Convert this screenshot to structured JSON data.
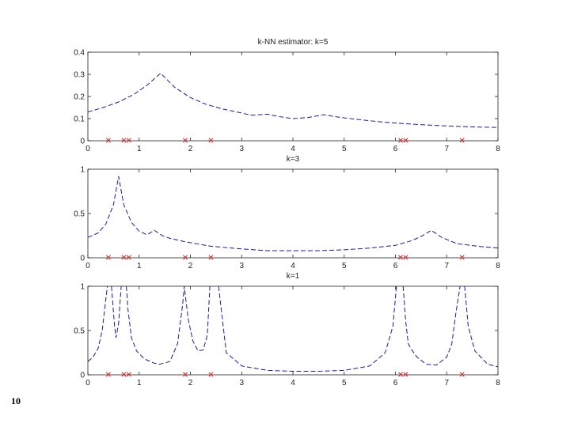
{
  "slide": {
    "page_number": "10"
  },
  "colors": {
    "curve": "#1a1aa8",
    "sample": "#d32020",
    "axis": "#222222"
  },
  "chart_data": [
    {
      "type": "line",
      "title": "k-NN estimator: k=5",
      "xlim": [
        0,
        8
      ],
      "ylim": [
        0,
        0.4
      ],
      "xticks": [
        0,
        1,
        2,
        3,
        4,
        5,
        6,
        7,
        8
      ],
      "yticks": [
        0,
        0.1,
        0.2,
        0.3,
        0.4
      ],
      "ytick_labels": [
        "0",
        "0.1",
        "0.2",
        "0.3",
        "0.4"
      ],
      "line_style": "dashed",
      "series": [
        {
          "x": [
            0,
            0.3,
            0.6,
            0.9,
            1.15,
            1.42,
            1.7,
            2.0,
            2.3,
            2.6,
            3.0,
            3.2,
            3.5,
            3.7,
            4.0,
            4.3,
            4.6,
            4.85,
            5.2,
            5.6,
            6.0,
            6.4,
            6.8,
            7.2,
            7.6,
            8.0
          ],
          "y": [
            0.13,
            0.15,
            0.175,
            0.21,
            0.25,
            0.305,
            0.24,
            0.195,
            0.165,
            0.145,
            0.125,
            0.115,
            0.12,
            0.11,
            0.1,
            0.105,
            0.118,
            0.108,
            0.098,
            0.088,
            0.08,
            0.074,
            0.069,
            0.065,
            0.062,
            0.06
          ]
        }
      ],
      "samples": [
        0.4,
        0.7,
        0.8,
        1.9,
        2.4,
        6.1,
        6.2,
        7.3
      ]
    },
    {
      "type": "line",
      "title": "k=3",
      "xlim": [
        0,
        8
      ],
      "ylim": [
        0,
        1
      ],
      "xticks": [
        0,
        1,
        2,
        3,
        4,
        5,
        6,
        7,
        8
      ],
      "yticks": [
        0,
        0.5,
        1
      ],
      "ytick_labels": [
        "0",
        "0.5",
        "1"
      ],
      "line_style": "dashed",
      "series": [
        {
          "x": [
            0,
            0.2,
            0.35,
            0.5,
            0.6,
            0.7,
            0.85,
            1.0,
            1.15,
            1.3,
            1.45,
            1.6,
            1.9,
            2.4,
            3.0,
            3.5,
            4.0,
            4.5,
            5.0,
            5.5,
            6.0,
            6.3,
            6.5,
            6.7,
            6.9,
            7.2,
            7.6,
            8.0
          ],
          "y": [
            0.23,
            0.28,
            0.38,
            0.6,
            0.92,
            0.6,
            0.4,
            0.3,
            0.26,
            0.31,
            0.25,
            0.22,
            0.18,
            0.13,
            0.1,
            0.08,
            0.08,
            0.08,
            0.09,
            0.11,
            0.14,
            0.19,
            0.24,
            0.31,
            0.23,
            0.16,
            0.13,
            0.11
          ]
        }
      ],
      "samples": [
        0.4,
        0.7,
        0.8,
        1.9,
        2.4,
        6.1,
        6.2,
        7.3
      ]
    },
    {
      "type": "line",
      "title": "k=1",
      "xlim": [
        0,
        8
      ],
      "ylim": [
        0,
        1
      ],
      "xticks": [
        0,
        1,
        2,
        3,
        4,
        5,
        6,
        7,
        8
      ],
      "yticks": [
        0,
        0.5,
        1
      ],
      "ytick_labels": [
        "0",
        "0.5",
        "1"
      ],
      "line_style": "dashed",
      "series": [
        {
          "x": [
            0,
            0.1,
            0.2,
            0.28,
            0.34,
            0.38,
            0.42,
            0.46,
            0.52,
            0.55,
            0.6,
            0.65,
            0.7,
            0.75,
            0.78,
            0.85,
            0.95,
            1.1,
            1.3,
            1.4,
            1.6,
            1.75,
            1.85,
            1.88,
            1.96,
            2.05,
            2.15,
            2.25,
            2.33,
            2.38,
            2.45,
            2.55,
            2.7,
            3.0,
            3.5,
            4.0,
            4.5,
            5.0,
            5.5,
            5.8,
            5.95,
            6.02,
            6.1,
            6.15,
            6.2,
            6.25,
            6.32,
            6.42,
            6.6,
            6.8,
            7.0,
            7.1,
            7.18,
            7.26,
            7.3,
            7.35,
            7.42,
            7.55,
            7.8,
            8.0
          ],
          "y": [
            0.15,
            0.2,
            0.3,
            0.5,
            0.8,
            1.0,
            null,
            1.0,
            0.55,
            0.42,
            0.58,
            1.0,
            null,
            1.0,
            0.75,
            0.42,
            0.27,
            0.18,
            0.13,
            0.12,
            0.15,
            0.35,
            0.8,
            1.0,
            0.62,
            0.38,
            0.27,
            0.28,
            0.45,
            1.0,
            null,
            1.0,
            0.25,
            0.1,
            0.05,
            0.04,
            0.04,
            0.05,
            0.1,
            0.25,
            0.55,
            1.0,
            null,
            1.0,
            0.6,
            0.35,
            0.28,
            0.2,
            0.12,
            0.11,
            0.2,
            0.35,
            0.7,
            1.0,
            null,
            1.0,
            0.55,
            0.27,
            0.12,
            0.09
          ]
        }
      ],
      "samples": [
        0.4,
        0.7,
        0.8,
        1.9,
        2.4,
        6.1,
        6.2,
        7.3
      ]
    }
  ]
}
